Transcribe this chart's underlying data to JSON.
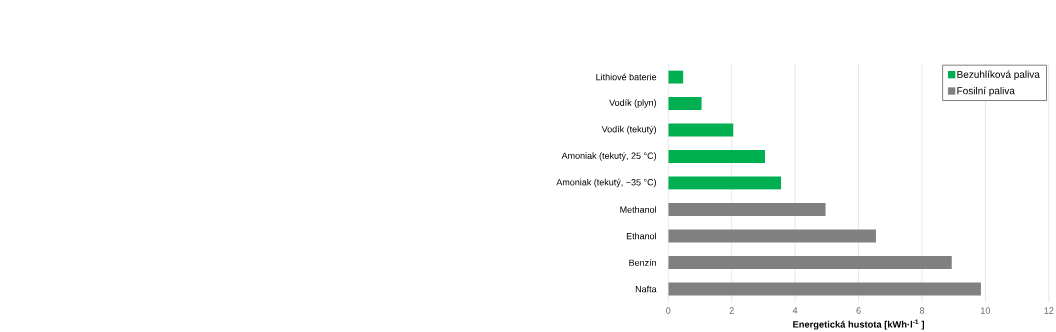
{
  "chart_data": {
    "type": "bar",
    "orientation": "horizontal",
    "categories": [
      "Lithiové baterie",
      "Vodík (plyn)",
      "Vodík (tekutý)",
      "Amoniak (tekutý, 25 °C)",
      "Amoniak (tekutý, −35 °C)",
      "Methanol",
      "Ethanol",
      "Benzín",
      "Nafta"
    ],
    "series": [
      {
        "name": "Bezuhlíková paliva",
        "color": "#00b050",
        "values": [
          0.47,
          1.05,
          2.05,
          3.05,
          3.56,
          null,
          null,
          null,
          null
        ]
      },
      {
        "name": "Fosilní paliva",
        "color": "#808080",
        "values": [
          null,
          null,
          null,
          null,
          null,
          4.96,
          6.55,
          8.94,
          9.86
        ]
      }
    ],
    "xlabel": "Energetická hustota [kWh·l$^{-1}$ ]",
    "xlim": [
      0,
      12
    ],
    "xticks": [
      0,
      2,
      4,
      6,
      8,
      10,
      12
    ],
    "grid": "x",
    "legend": "top right"
  }
}
